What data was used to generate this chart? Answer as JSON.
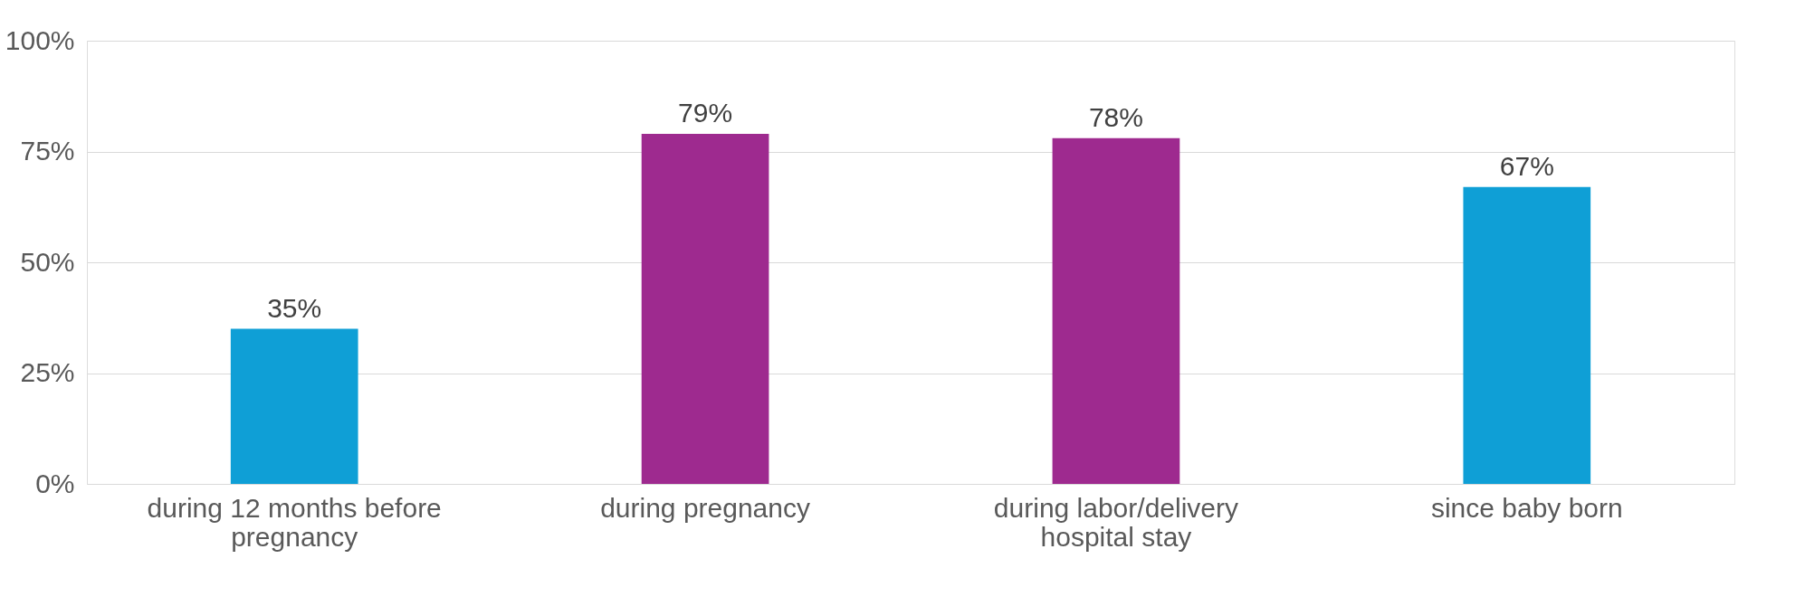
{
  "chart_data": {
    "type": "bar",
    "categories": [
      "during 12 months before pregnancy",
      "during pregnancy",
      "during labor/delivery hospital stay",
      "since baby born"
    ],
    "values": [
      35,
      79,
      78,
      67
    ],
    "colors": [
      "#0f9fd6",
      "#9e2a8f",
      "#9e2a8f",
      "#0f9fd6"
    ],
    "ylim": [
      0,
      100
    ],
    "yticks": [
      {
        "value": 0,
        "label": "0%"
      },
      {
        "value": 25,
        "label": "25%"
      },
      {
        "value": 50,
        "label": "50%"
      },
      {
        "value": 75,
        "label": "75%"
      },
      {
        "value": 100,
        "label": "100%"
      }
    ],
    "grid": "y",
    "data_labels": true,
    "value_labels": [
      "35%",
      "79%",
      "78%",
      "67%"
    ]
  }
}
